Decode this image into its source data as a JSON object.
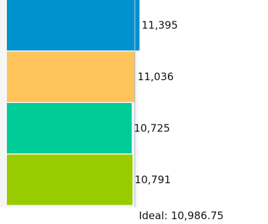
{
  "chart_data": {
    "type": "bar",
    "orientation": "horizontal",
    "categories": [
      "",
      "",
      "",
      ""
    ],
    "values": [
      11395,
      11036,
      10725,
      10791
    ],
    "value_labels": [
      "11,395",
      "11,036",
      "10,725",
      "10,791"
    ],
    "colors": [
      "#0092cf",
      "#fec45b",
      "#00cc98",
      "#99cc00"
    ],
    "ideal": {
      "value": 10986.75,
      "label": "Ideal: 10,986.75",
      "color": "#a9c6d6"
    },
    "axis_max": 11395,
    "grid": false,
    "legend": "none"
  }
}
